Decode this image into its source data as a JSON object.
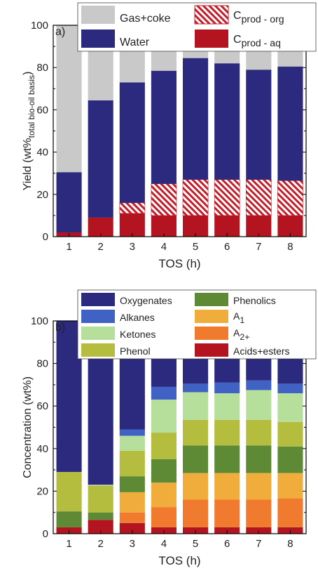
{
  "chart_data": [
    {
      "type": "bar",
      "stacked": true,
      "panel_label": "a)",
      "categories": [
        "1",
        "2",
        "3",
        "4",
        "5",
        "6",
        "7",
        "8"
      ],
      "xlabel": "TOS (h)",
      "ylabel": "Yield (wt%",
      "ylabel_sub": "total bio-oil basis",
      "ylabel_tail": ")",
      "ylim": [
        0,
        100
      ],
      "yticks": [
        0,
        20,
        40,
        60,
        80,
        100
      ],
      "legend_placement": "top",
      "series": [
        {
          "name": "C",
          "name_sub": "prod - aq",
          "color": "#b3141f",
          "hatch": false,
          "values": [
            2,
            9,
            11,
            10,
            10,
            10,
            10,
            10
          ]
        },
        {
          "name": "C",
          "name_sub": "prod - org",
          "color": "#c41e2a",
          "hatch": true,
          "values": [
            0,
            0,
            5,
            15,
            17,
            17,
            17,
            16.5
          ]
        },
        {
          "name": "Water",
          "color": "#2b2a7f",
          "hatch": false,
          "values": [
            28.5,
            55.5,
            57,
            53.5,
            57.5,
            55,
            52,
            54
          ]
        },
        {
          "name": "Gas+coke",
          "color": "#c9c9c9",
          "hatch": false,
          "values": [
            69.5,
            35.5,
            27,
            21.5,
            15.5,
            18,
            21,
            19.5
          ]
        }
      ]
    },
    {
      "type": "bar",
      "stacked": true,
      "panel_label": "b)",
      "categories": [
        "1",
        "2",
        "3",
        "4",
        "5",
        "6",
        "7",
        "8"
      ],
      "xlabel": "TOS (h)",
      "ylabel": "Concentration (wt%)",
      "ylim": [
        0,
        100
      ],
      "yticks": [
        0,
        20,
        40,
        60,
        80,
        100
      ],
      "legend_placement": "top",
      "series": [
        {
          "name": "Acids+esters",
          "color": "#b3141f",
          "values": [
            3,
            6.5,
            5,
            3,
            3,
            3,
            3,
            3
          ]
        },
        {
          "name": "A",
          "name_sub": "2+",
          "color": "#f07a2e",
          "values": [
            0,
            0,
            5,
            9.5,
            13,
            13,
            13,
            13.5
          ]
        },
        {
          "name": "A",
          "name_sub": "1",
          "color": "#f0ad3c",
          "values": [
            0,
            0,
            9.5,
            11.5,
            12.5,
            12.5,
            12.5,
            12
          ]
        },
        {
          "name": "Phenolics",
          "color": "#5f8a35",
          "values": [
            7.5,
            3.5,
            7.5,
            11,
            13,
            13,
            13,
            12.5
          ]
        },
        {
          "name": "Phenol",
          "color": "#b5bd3e",
          "values": [
            18.5,
            12.5,
            12,
            12.5,
            12,
            12,
            12,
            11.5
          ]
        },
        {
          "name": "Ketones",
          "color": "#b7df9c",
          "values": [
            0,
            0.5,
            7,
            15.5,
            13,
            12.5,
            14,
            13.5
          ]
        },
        {
          "name": "Alkanes",
          "color": "#3f62c4",
          "values": [
            0,
            0,
            3,
            6,
            4,
            5,
            4.5,
            4.5
          ]
        },
        {
          "name": "Oxygenates",
          "color": "#2b2a7f",
          "values": [
            71,
            77,
            51,
            31,
            29.5,
            29,
            28,
            29.5
          ]
        }
      ]
    }
  ]
}
